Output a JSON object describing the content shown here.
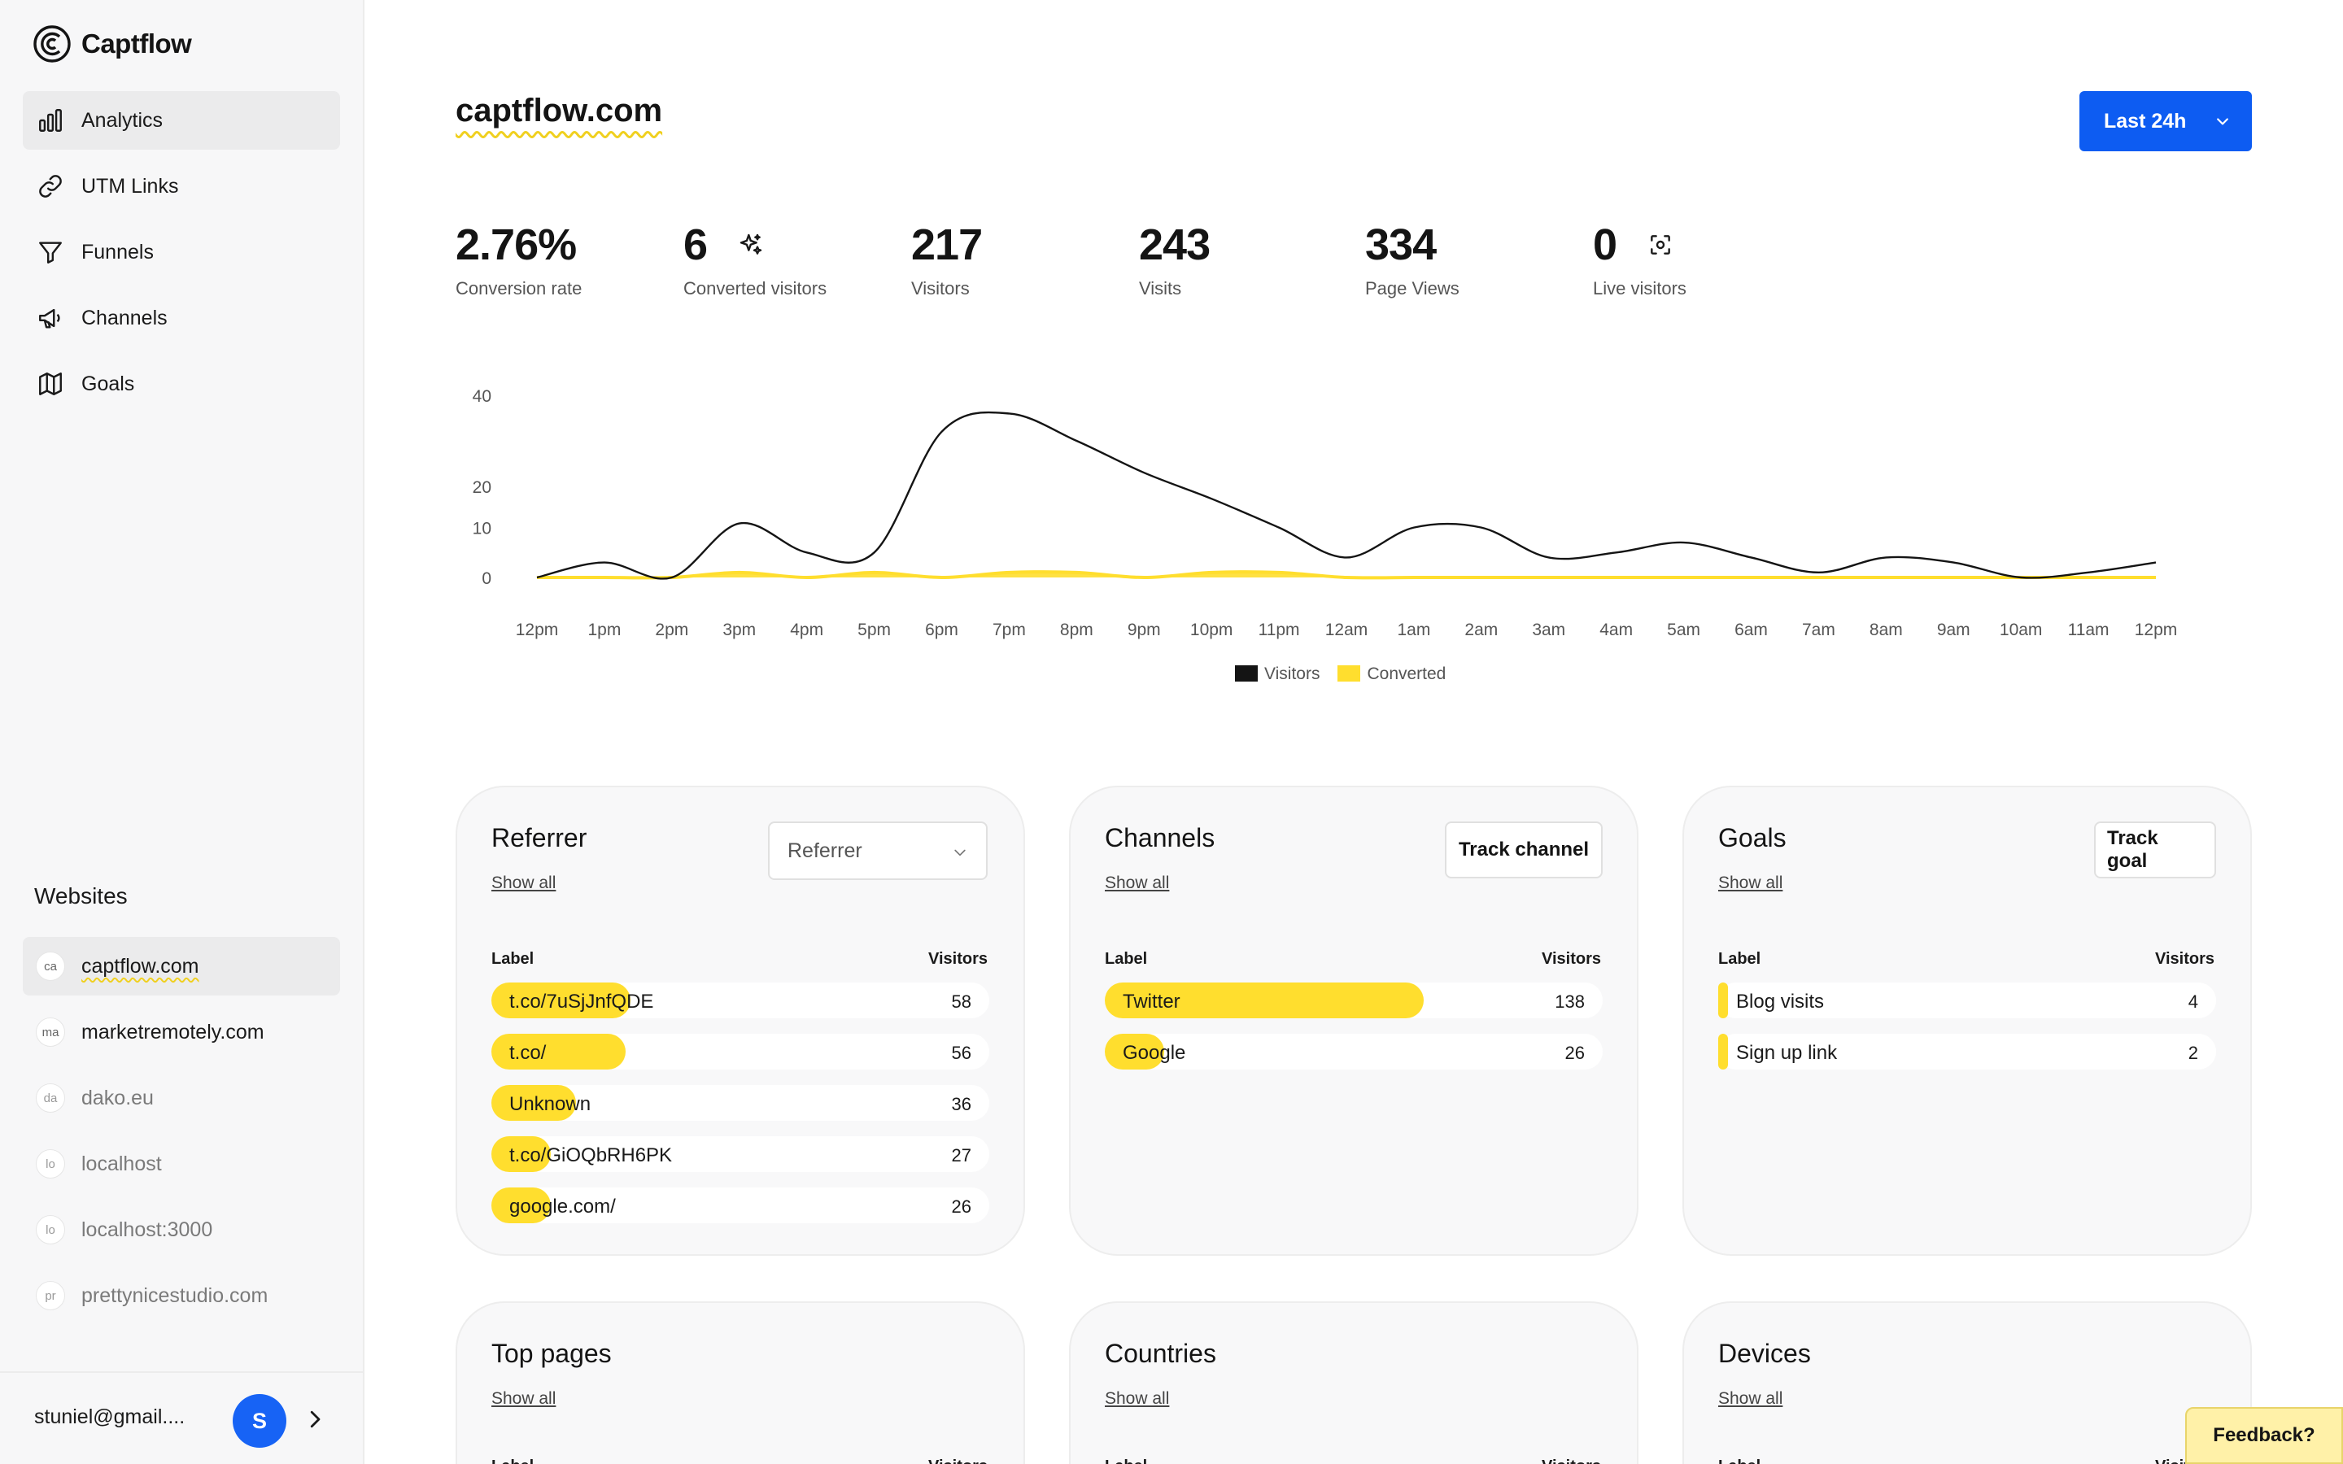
{
  "app": {
    "name": "Captflow"
  },
  "nav": [
    {
      "label": "Analytics",
      "icon": "bar-chart-icon",
      "active": true
    },
    {
      "label": "UTM Links",
      "icon": "link-icon"
    },
    {
      "label": "Funnels",
      "icon": "funnel-icon"
    },
    {
      "label": "Channels",
      "icon": "megaphone-icon"
    },
    {
      "label": "Goals",
      "icon": "map-icon"
    }
  ],
  "websites": {
    "title": "Websites",
    "items": [
      {
        "badge": "ca",
        "name": "captflow.com",
        "active": true
      },
      {
        "badge": "ma",
        "name": "marketremotely.com"
      },
      {
        "badge": "da",
        "name": "dako.eu"
      },
      {
        "badge": "lo",
        "name": "localhost"
      },
      {
        "badge": "lo",
        "name": "localhost:3000"
      },
      {
        "badge": "pr",
        "name": "prettynicestudio.com"
      }
    ]
  },
  "user": {
    "email": "stuniel@gmail....",
    "initial": "S"
  },
  "header": {
    "site": "captflow.com",
    "range_label": "Last 24h"
  },
  "stats": [
    {
      "value": "2.76%",
      "label": "Conversion rate"
    },
    {
      "value": "6",
      "label": "Converted visitors",
      "icon": "sparkles-icon"
    },
    {
      "value": "217",
      "label": "Visitors"
    },
    {
      "value": "243",
      "label": "Visits"
    },
    {
      "value": "334",
      "label": "Page Views"
    },
    {
      "value": "0",
      "label": "Live visitors",
      "icon": "live-scan-icon"
    }
  ],
  "chart_data": {
    "type": "area",
    "x": [
      "12pm",
      "1pm",
      "2pm",
      "3pm",
      "4pm",
      "5pm",
      "6pm",
      "7pm",
      "8pm",
      "9pm",
      "10pm",
      "11pm",
      "12am",
      "1am",
      "2am",
      "3am",
      "4am",
      "5am",
      "6am",
      "7am",
      "8am",
      "9am",
      "10am",
      "11am",
      "12pm"
    ],
    "series": [
      {
        "name": "Visitors",
        "color": "#141414",
        "values": [
          0,
          3,
          0,
          11,
          5,
          5,
          32,
          36,
          30,
          23,
          17,
          10,
          4,
          10,
          10,
          4,
          5,
          7,
          4,
          1,
          4,
          3,
          0,
          1,
          3
        ]
      },
      {
        "name": "Converted",
        "color": "#ffde2e",
        "values": [
          0,
          0,
          0,
          1,
          0,
          1,
          0,
          1,
          1,
          0,
          1,
          1,
          0,
          0,
          0,
          0,
          0,
          0,
          0,
          0,
          0,
          0,
          0,
          0,
          0
        ]
      }
    ],
    "yticks": [
      0,
      10,
      20,
      40
    ],
    "ylim": [
      0,
      40
    ],
    "legend": "bottom"
  },
  "cards": {
    "referrer": {
      "title": "Referrer",
      "show_all": "Show all",
      "select_value": "Referrer",
      "col_label": "Label",
      "col_value": "Visitors",
      "rows": [
        {
          "label": "t.co/7uSjJnfQDE",
          "value": "58",
          "pct": 0.28
        },
        {
          "label": "t.co/",
          "value": "56",
          "pct": 0.27
        },
        {
          "label": "Unknown",
          "value": "36",
          "pct": 0.17
        },
        {
          "label": "t.co/GiOQbRH6PK",
          "value": "27",
          "pct": 0.12
        },
        {
          "label": "google.com/",
          "value": "26",
          "pct": 0.12
        }
      ]
    },
    "channels": {
      "title": "Channels",
      "show_all": "Show all",
      "button": "Track channel",
      "col_label": "Label",
      "col_value": "Visitors",
      "rows": [
        {
          "label": "Twitter",
          "value": "138",
          "pct": 0.64
        },
        {
          "label": "Google",
          "value": "26",
          "pct": 0.12
        }
      ]
    },
    "goals": {
      "title": "Goals",
      "show_all": "Show all",
      "button": "Track goal",
      "col_label": "Label",
      "col_value": "Visitors",
      "rows": [
        {
          "label": "Blog visits",
          "value": "4",
          "pct": 0.02
        },
        {
          "label": "Sign up link",
          "value": "2",
          "pct": 0.02
        }
      ]
    },
    "top_pages": {
      "title": "Top pages",
      "show_all": "Show all",
      "col_label": "Label",
      "col_value": "Visitors"
    },
    "countries": {
      "title": "Countries",
      "show_all": "Show all",
      "col_label": "Label",
      "col_value": "Visitors"
    },
    "devices": {
      "title": "Devices",
      "show_all": "Show all",
      "col_label": "Label",
      "col_value": "Visitors"
    }
  },
  "feedback": {
    "label": "Feedback?"
  },
  "colors": {
    "accent": "#0d5cf2",
    "highlight": "#ffde2e",
    "avatar": "#1763f5"
  }
}
